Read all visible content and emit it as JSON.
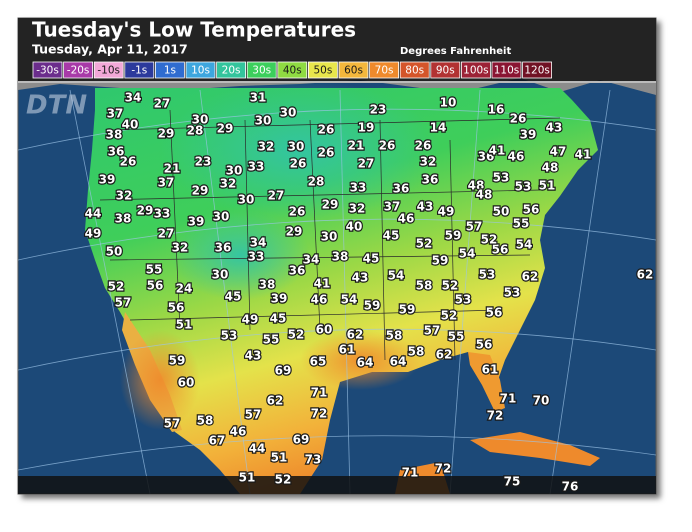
{
  "header": {
    "title": "Tuesday's Low Temperatures",
    "subtitle": "Tuesday, Apr 11, 2017",
    "units": "Degrees Fahrenheit"
  },
  "logo": "DTN",
  "legend": {
    "labels": [
      "-30s",
      "-20s",
      "-10s",
      "-1s",
      "1s",
      "10s",
      "20s",
      "30s",
      "40s",
      "50s",
      "60s",
      "70s",
      "80s",
      "90s",
      "100s",
      "110s",
      "120s"
    ],
    "colors": [
      "#6b2d8c",
      "#a83aa8",
      "#f2a8d8",
      "#2c3a9c",
      "#2f6cd0",
      "#3da6de",
      "#33c49c",
      "#3ccf5c",
      "#8fdb42",
      "#e8e64c",
      "#f4b73c",
      "#ef8a2c",
      "#d4552a",
      "#b23232",
      "#9c2236",
      "#8a1432",
      "#701224"
    ]
  },
  "map": {
    "temperatures": [
      34,
      27,
      31,
      23,
      10,
      16,
      37,
      30,
      30,
      30,
      26,
      40,
      29,
      26,
      19,
      14,
      39,
      43,
      38,
      29,
      28,
      36,
      32,
      30,
      21,
      26,
      26,
      47,
      41,
      26,
      21,
      23,
      30,
      33,
      26,
      26,
      27,
      32,
      36,
      41,
      46,
      48,
      39,
      37,
      29,
      32,
      28,
      33,
      36,
      36,
      48,
      53,
      53,
      51,
      32,
      30,
      27,
      48,
      44,
      38,
      29,
      33,
      39,
      30,
      26,
      29,
      32,
      37,
      43,
      49,
      50,
      56,
      46,
      55,
      49,
      27,
      32,
      36,
      34,
      29,
      30,
      40,
      45,
      52,
      59,
      57,
      56,
      54,
      50,
      33,
      34,
      38,
      45,
      59,
      54,
      52,
      55,
      30,
      36,
      43,
      54,
      58,
      52,
      53,
      62,
      52,
      56,
      24,
      38,
      41,
      53,
      53,
      57,
      45,
      39,
      46,
      54,
      59,
      59,
      52,
      56,
      62,
      56,
      49,
      45,
      51,
      53,
      55,
      52,
      60,
      62,
      58,
      57,
      55,
      56,
      43,
      61,
      58,
      62,
      65,
      59,
      64,
      64,
      61,
      60,
      69,
      71,
      62,
      72,
      71,
      70,
      72,
      57,
      58,
      57,
      67,
      46,
      69,
      44,
      51,
      73,
      71,
      72,
      75,
      76,
      51,
      52
    ]
  }
}
